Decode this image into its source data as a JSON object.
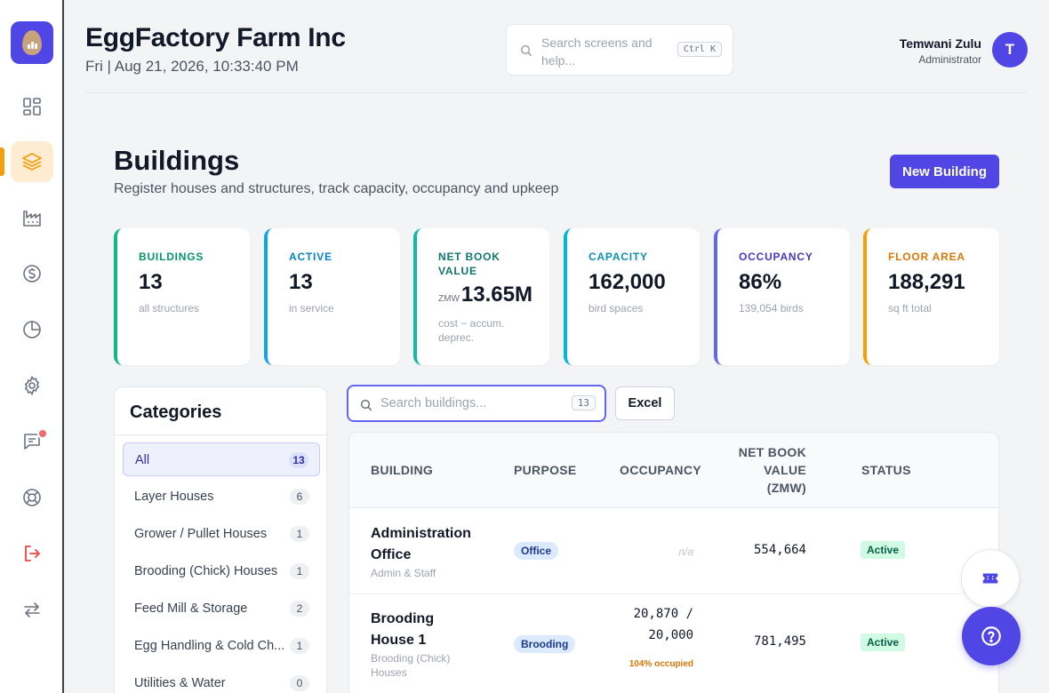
{
  "header": {
    "company": "EggFactory Farm Inc",
    "datetime": "Fri | Aug 21, 2026, 10:33:40 PM",
    "search_placeholder": "Search screens and help...",
    "search_shortcut": "Ctrl K",
    "user_name": "Temwani Zulu",
    "user_role": "Administrator",
    "avatar_initial": "T"
  },
  "sidebar": {
    "items": [
      {
        "name": "dashboard",
        "icon": "grid-icon",
        "active": false
      },
      {
        "name": "buildings",
        "icon": "layers-icon",
        "active": true
      },
      {
        "name": "production",
        "icon": "factory-icon",
        "active": false
      },
      {
        "name": "finance",
        "icon": "dollar-icon",
        "active": false
      },
      {
        "name": "reports",
        "icon": "pie-chart-icon",
        "active": false
      },
      {
        "name": "settings",
        "icon": "gear-icon",
        "active": false
      },
      {
        "name": "messages",
        "icon": "chat-icon",
        "active": false
      },
      {
        "name": "support",
        "icon": "lifebuoy-icon",
        "active": false
      },
      {
        "name": "logout",
        "icon": "logout-icon",
        "active": false
      },
      {
        "name": "switch",
        "icon": "switch-arrows-icon",
        "active": false
      }
    ]
  },
  "page": {
    "title": "Buildings",
    "subtitle": "Register houses and structures, track capacity, occupancy and upkeep",
    "new_button": "New Building"
  },
  "stats": [
    {
      "label": "BUILDINGS",
      "value": "13",
      "sub": "all structures",
      "color": "#10b981"
    },
    {
      "label": "ACTIVE",
      "value": "13",
      "sub": "in service",
      "color": "#0ea5e9"
    },
    {
      "label": "NET BOOK VALUE",
      "prefix": "ZMW",
      "value": "13.65M",
      "sub": "cost − accum. deprec.",
      "color": "#14b8a6"
    },
    {
      "label": "CAPACITY",
      "value": "162,000",
      "sub": "bird spaces",
      "color": "#06b6d4"
    },
    {
      "label": "OCCUPANCY",
      "value": "86%",
      "sub": "139,054 birds",
      "color": "#6366f1"
    },
    {
      "label": "FLOOR AREA",
      "value": "188,291",
      "sub": "sq ft total",
      "color": "#f59e0b"
    }
  ],
  "categories": {
    "title": "Categories",
    "items": [
      {
        "label": "All",
        "count": "13",
        "active": true
      },
      {
        "label": "Layer Houses",
        "count": "6"
      },
      {
        "label": "Grower / Pullet Houses",
        "count": "1"
      },
      {
        "label": "Brooding (Chick) Houses",
        "count": "1"
      },
      {
        "label": "Feed Mill & Storage",
        "count": "2"
      },
      {
        "label": "Egg Handling & Cold Ch...",
        "count": "1"
      },
      {
        "label": "Utilities & Water",
        "count": "0"
      }
    ]
  },
  "table_search": {
    "placeholder": "Search buildings...",
    "count": "13"
  },
  "excel_button": "Excel",
  "table": {
    "headers": {
      "building": "BUILDING",
      "purpose": "PURPOSE",
      "occupancy": "OCCUPANCY",
      "nbv_line1": "NET BOOK",
      "nbv_line2": "VALUE",
      "nbv_line3": "(ZMW)",
      "status": "STATUS"
    },
    "rows": [
      {
        "name_line1": "Administration",
        "name_line2": "Office",
        "sub_line1": "Admin & Staff",
        "sub_line2": "",
        "purpose": "Office",
        "occupancy_na": "n/a",
        "nbv": "554,664",
        "status": "Active"
      },
      {
        "name_line1": "Brooding",
        "name_line2": "House 1",
        "sub_line1": "Brooding (Chick)",
        "sub_line2": "Houses",
        "purpose": "Brooding",
        "occupancy_line1": "20,870 /",
        "occupancy_line2": "20,000",
        "occupancy_note": "104% occupied",
        "nbv": "781,495",
        "status": "Active"
      }
    ]
  }
}
